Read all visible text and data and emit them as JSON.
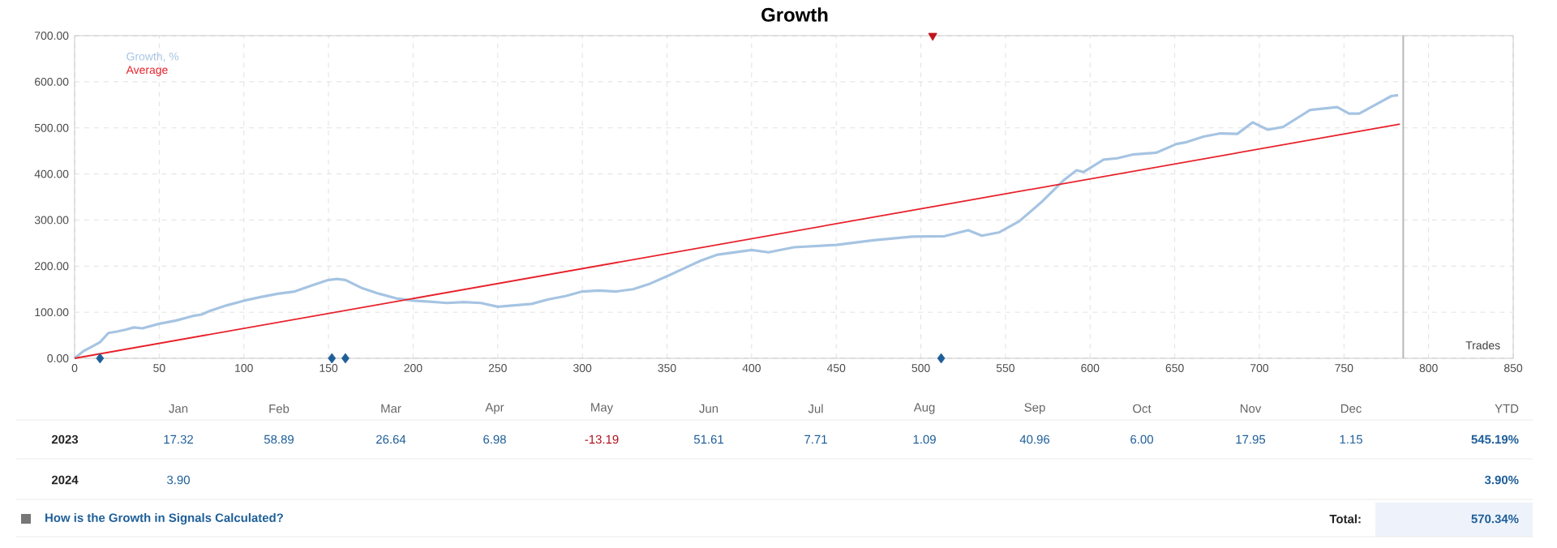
{
  "chart_data": {
    "type": "line",
    "title": "Growth",
    "xlabel": "Trades",
    "xlim": [
      0,
      850
    ],
    "xticks": [
      0,
      50,
      100,
      150,
      200,
      250,
      300,
      350,
      400,
      450,
      500,
      550,
      600,
      650,
      700,
      750,
      800,
      850
    ],
    "ylim": [
      0,
      700
    ],
    "yticks": [
      {
        "value": 0,
        "label": "0.00"
      },
      {
        "value": 100,
        "label": "100.00"
      },
      {
        "value": 200,
        "label": "200.00"
      },
      {
        "value": 300,
        "label": "300.00"
      },
      {
        "value": 400,
        "label": "400.00"
      },
      {
        "value": 500,
        "label": "500.00"
      },
      {
        "value": 600,
        "label": "600.00"
      },
      {
        "value": 700,
        "label": "700.00"
      }
    ],
    "grid": true,
    "legend": "top left",
    "line_style": "solid",
    "series": [
      {
        "name": "Growth, %",
        "color": "#a6c4e2",
        "x": [
          0,
          5,
          10,
          15,
          20,
          25,
          30,
          35,
          40,
          50,
          60,
          70,
          75,
          80,
          90,
          100,
          110,
          120,
          130,
          140,
          150,
          155,
          160,
          170,
          180,
          190,
          200,
          210,
          220,
          230,
          240,
          250,
          260,
          270,
          280,
          290,
          300,
          310,
          320,
          330,
          340,
          350,
          360,
          370,
          380,
          390,
          400,
          410,
          425,
          450,
          472,
          495,
          514,
          528,
          536,
          546,
          558,
          571,
          584,
          592,
          596,
          608,
          616,
          625,
          639,
          651,
          657,
          667,
          677,
          687,
          696,
          705,
          714,
          724,
          730,
          746,
          753,
          759,
          768,
          778,
          782
        ],
        "values": [
          0,
          15,
          25,
          35,
          55,
          58,
          62,
          67,
          65,
          75,
          82,
          92,
          95,
          103,
          115,
          125,
          133,
          140,
          145,
          158,
          170,
          172,
          170,
          152,
          140,
          130,
          125,
          123,
          120,
          122,
          120,
          112,
          115,
          118,
          128,
          135,
          145,
          147,
          145,
          150,
          162,
          178,
          195,
          212,
          225,
          230,
          235,
          230,
          241,
          246,
          256,
          264,
          265,
          278,
          266,
          273,
          297,
          338,
          385,
          408,
          404,
          431,
          434,
          442,
          446,
          465,
          469,
          481,
          488,
          487,
          512,
          496,
          502,
          525,
          539,
          545,
          531,
          531,
          549,
          569,
          571
        ]
      },
      {
        "name": "Average",
        "color": "#e8202a",
        "x": [
          0,
          783
        ],
        "values": [
          0,
          508
        ]
      },
      {
        "type": "scatter",
        "color": "#1f5f99",
        "marker": "diamond",
        "x": [
          15,
          152,
          160,
          512
        ],
        "values": [
          0,
          0,
          0,
          0
        ]
      },
      {
        "type": "scatter",
        "color": "#c0131b",
        "marker": "triangle",
        "x": [
          507
        ],
        "values": [
          700
        ]
      }
    ],
    "ref_lines": [
      {
        "axis": "x",
        "value": 785,
        "color": "#b8b8b8"
      }
    ],
    "annotations": [
      "Jan",
      "Feb",
      "Mar",
      "Apr",
      "May",
      "Jun",
      "Jul",
      "Aug",
      "Sep",
      "Oct",
      "Nov",
      "Dec",
      "YTD",
      "2023",
      "17.32",
      "58.89",
      "26.64",
      "6.98",
      "-13.19",
      "51.61",
      "7.71",
      "1.09",
      "40.96",
      "6.00",
      "17.95",
      "1.15",
      "545.19%",
      "2024",
      "3.90",
      "3.90%",
      "How is the Growth in Signals Calculated?",
      "Total:",
      "570.34%"
    ]
  }
}
